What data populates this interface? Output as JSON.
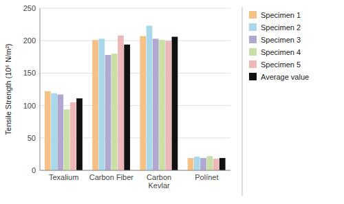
{
  "chart_data": {
    "type": "bar",
    "categories": [
      "Texalium",
      "Carbon Fiber",
      "Carbon\nKevlar",
      "Polínet"
    ],
    "series": [
      {
        "name": "Specimen 1",
        "color": "#F5C185",
        "values": [
          122,
          201,
          207,
          19
        ]
      },
      {
        "name": "Specimen 2",
        "color": "#A8D8EA",
        "values": [
          119,
          203,
          223,
          21
        ]
      },
      {
        "name": "Specimen 3",
        "color": "#B0A8D0",
        "values": [
          117,
          178,
          203,
          19
        ]
      },
      {
        "name": "Specimen 4",
        "color": "#C8E0A8",
        "values": [
          94,
          180,
          201,
          22
        ]
      },
      {
        "name": "Specimen 5",
        "color": "#EDB8B8",
        "values": [
          105,
          208,
          200,
          18
        ]
      },
      {
        "name": "Average value",
        "color": "#111111",
        "values": [
          111,
          194,
          206,
          19
        ]
      }
    ],
    "ylabel": "Tensile Strength (10⁶ N/m²)",
    "ylim": [
      0,
      250
    ],
    "yticks": [
      0,
      50,
      100,
      150,
      200,
      250
    ],
    "grid": true,
    "legend": "right"
  }
}
